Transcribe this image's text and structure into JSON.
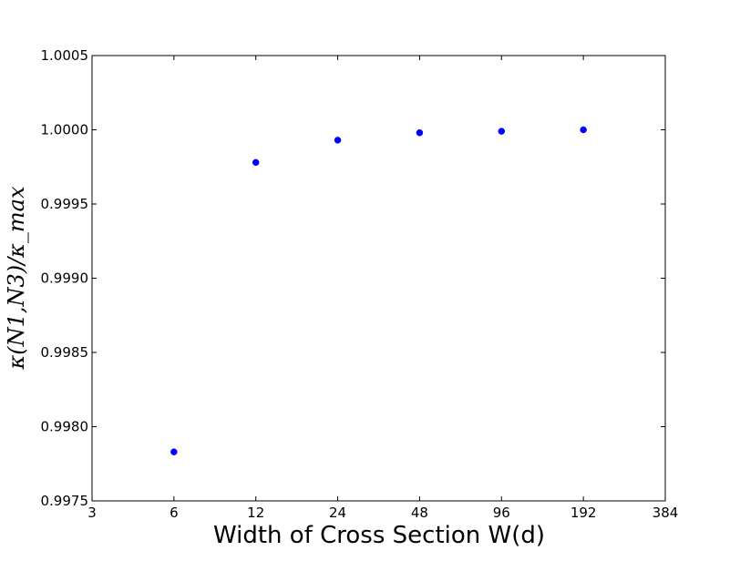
{
  "chart_data": {
    "type": "scatter",
    "xlabel": "Width of Cross Section W(d)",
    "ylabel": "κ(N1,N3)/κ_max",
    "xscale": "log2",
    "xlim": [
      3,
      384
    ],
    "ylim": [
      0.9975,
      1.0005
    ],
    "x_ticks": [
      "3",
      "6",
      "12",
      "24",
      "48",
      "96",
      "192",
      "384"
    ],
    "y_ticks": [
      "0.9975",
      "0.9980",
      "0.9985",
      "0.9990",
      "0.9995",
      "1.0000",
      "1.0005"
    ],
    "grid": false,
    "series": [
      {
        "color": "#0000ff",
        "points": [
          {
            "x": 6,
            "y": 0.99783
          },
          {
            "x": 12,
            "y": 0.99978
          },
          {
            "x": 24,
            "y": 0.99993
          },
          {
            "x": 48,
            "y": 0.99998
          },
          {
            "x": 96,
            "y": 0.99999
          },
          {
            "x": 192,
            "y": 1.0
          }
        ]
      }
    ]
  }
}
